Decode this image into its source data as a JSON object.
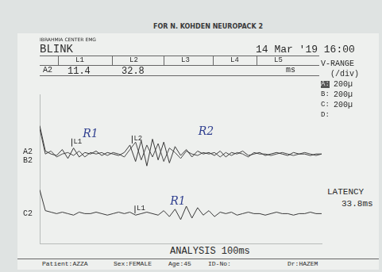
{
  "page": {
    "caption": "FOR N. KOHDEN NEUROPACK 2",
    "center": "IBRAHMIA CENTER EMG",
    "test": "BLINK",
    "date": "14 Mar '19 16:00"
  },
  "cursor_table": {
    "cursors": [
      "L1",
      "L2",
      "L3",
      "L4",
      "L5"
    ],
    "rows": [
      {
        "trace": "A2",
        "values": [
          11.4,
          32.8
        ],
        "unit": "ms"
      }
    ]
  },
  "side_panel": {
    "title": "V-RANGE",
    "unit": "(/div)",
    "ranges": [
      {
        "label": "A:",
        "value": "200µ"
      },
      {
        "label": "B:",
        "value": "200µ"
      },
      {
        "label": "C:",
        "value": "200µ"
      },
      {
        "label": "D:"
      }
    ],
    "latency": {
      "label": "LATENCY",
      "value": 33.8,
      "unit": "ms"
    }
  },
  "footer": {
    "analysis": "ANALYSIS 100ms",
    "fields": [
      "Patient:AZZA",
      "Sex:FEMALE",
      "Age:45",
      "ID-No:",
      "Dr:HAZEM"
    ]
  },
  "chart_data": {
    "type": "line",
    "tick_labels": false,
    "grid": false,
    "xlim": [
      0,
      100
    ],
    "ylim": [
      0,
      10
    ],
    "x": [
      0,
      2,
      4,
      6,
      8,
      10,
      12,
      14,
      16,
      18,
      20,
      22,
      24,
      26,
      28,
      30,
      32,
      34,
      36,
      38,
      40,
      42,
      44,
      46,
      48,
      50,
      52,
      54,
      56,
      58,
      60,
      62,
      64,
      66,
      68,
      70,
      72,
      74,
      76,
      78,
      80,
      82,
      84,
      86,
      88,
      90,
      92,
      94,
      96,
      98,
      100
    ],
    "series": [
      {
        "name": "A2",
        "color": "#3a3a3a",
        "values": [
          7.9,
          6.2,
          6.0,
          5.9,
          6.3,
          5.7,
          6.4,
          5.8,
          6.1,
          6.0,
          6.2,
          5.9,
          6.1,
          6.0,
          5.9,
          6.1,
          6.6,
          5.5,
          6.9,
          5.2,
          7.0,
          5.6,
          6.8,
          5.4,
          6.5,
          5.9,
          6.3,
          5.8,
          6.2,
          6.0,
          6.1,
          5.9,
          6.2,
          5.8,
          6.1,
          6.0,
          6.2,
          5.9,
          6.0,
          6.1,
          5.9,
          6.0,
          6.1,
          6.0,
          5.9,
          6.1,
          6.0,
          6.0,
          5.9,
          6.0,
          6.0
        ]
      },
      {
        "name": "B2",
        "color": "#4a4a4a",
        "values": [
          7.7,
          6.0,
          6.2,
          5.8,
          6.0,
          6.1,
          5.9,
          6.2,
          5.8,
          6.1,
          6.0,
          6.1,
          5.9,
          6.1,
          6.0,
          5.8,
          6.3,
          6.8,
          5.6,
          6.6,
          5.8,
          6.7,
          5.5,
          6.4,
          6.1,
          5.7,
          6.2,
          6.0,
          5.9,
          6.1,
          6.0,
          6.1,
          5.8,
          6.1,
          5.9,
          6.1,
          6.0,
          5.8,
          6.1,
          6.0,
          6.0,
          5.9,
          6.0,
          6.1,
          6.0,
          5.9,
          6.0,
          6.1,
          6.0,
          5.9,
          6.0
        ]
      },
      {
        "name": "C2",
        "color": "#3a3a3a",
        "values": [
          3.6,
          2.2,
          2.1,
          2.0,
          2.1,
          2.0,
          1.9,
          2.1,
          2.0,
          2.0,
          2.1,
          2.0,
          1.9,
          2.0,
          2.1,
          2.0,
          2.1,
          1.9,
          2.0,
          2.1,
          2.0,
          1.9,
          2.2,
          1.8,
          2.3,
          1.6,
          2.5,
          1.7,
          2.4,
          1.9,
          2.2,
          1.8,
          2.1,
          2.0,
          2.1,
          1.9,
          2.0,
          2.1,
          2.0,
          2.0,
          1.9,
          2.0,
          2.1,
          2.0,
          2.0,
          1.9,
          2.0,
          2.0,
          2.1,
          2.0,
          2.0
        ]
      }
    ],
    "markers": [
      {
        "series": "A2",
        "label": "L1",
        "x": 11.4
      },
      {
        "series": "A2",
        "label": "L2",
        "x": 32.8
      },
      {
        "series": "C2",
        "label": "L1",
        "x": 33.8
      }
    ],
    "annotations": [
      {
        "text": "R1",
        "x": 18,
        "y": 7.3,
        "color": "#2f3f8f"
      },
      {
        "text": "R2",
        "x": 59,
        "y": 7.5,
        "color": "#2f3f8f"
      },
      {
        "text": "R1",
        "x": 49,
        "y": 2.8,
        "color": "#2f3f8f"
      }
    ]
  }
}
